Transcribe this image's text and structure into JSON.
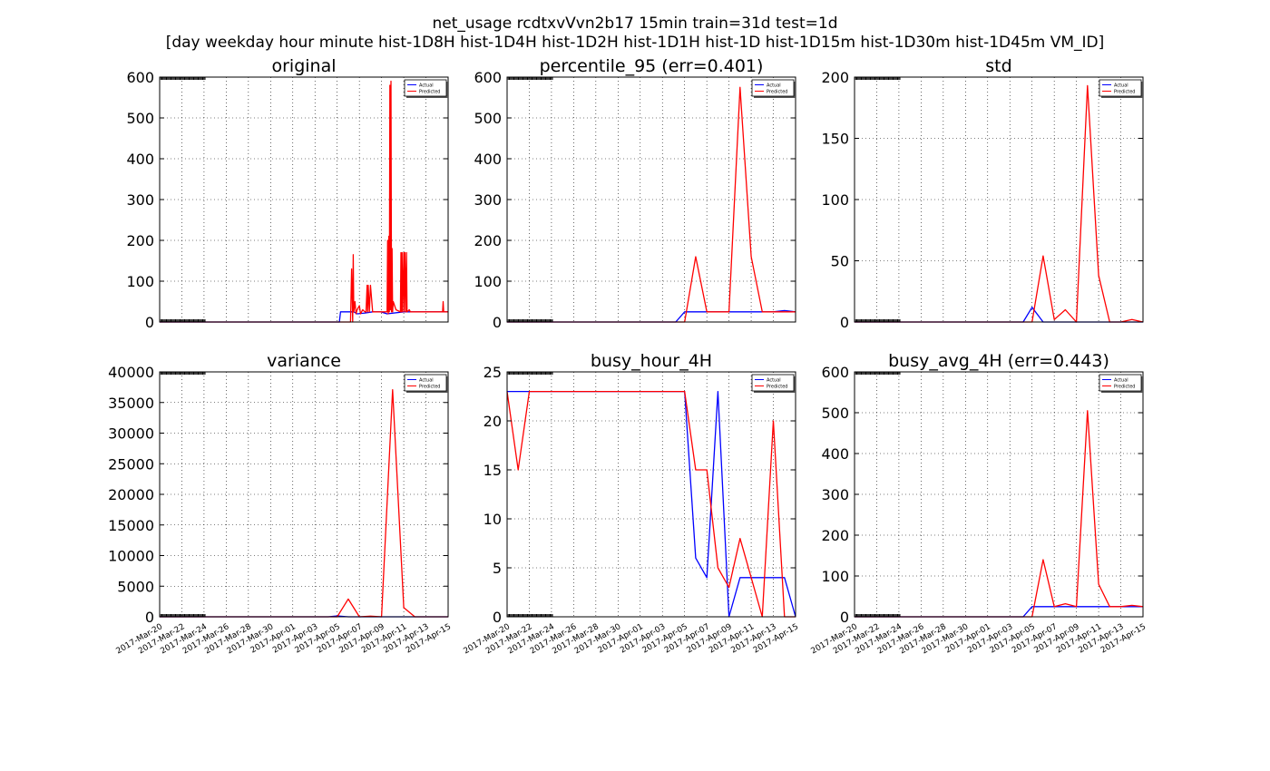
{
  "figure": {
    "title_line1": "net_usage rcdtxvVvn2b17 15min train=31d test=1d",
    "title_line2": "[day weekday hour minute hist-1D8H hist-1D4H hist-1D2H hist-1D1H hist-1D hist-1D15m hist-1D30m hist-1D45m VM_ID]"
  },
  "colors": {
    "actual": "#0000ff",
    "predicted": "#ff0000"
  },
  "x_tick_labels": [
    "2017-Mar-20",
    "2017-Mar-22",
    "2017-Mar-24",
    "2017-Mar-26",
    "2017-Mar-28",
    "2017-Mar-30",
    "2017-Apr-01",
    "2017-Apr-03",
    "2017-Apr-05",
    "2017-Apr-07",
    "2017-Apr-09",
    "2017-Apr-11",
    "2017-Apr-13",
    "2017-Apr-15"
  ],
  "chart_data": [
    {
      "type": "line",
      "title": "original",
      "xlim": [
        0,
        26
      ],
      "ylim": [
        0,
        600
      ],
      "yticks": [
        0,
        100,
        200,
        300,
        400,
        500,
        600
      ],
      "grid": true,
      "legend_placement": "top-right",
      "series": [
        {
          "name": "Actual",
          "color": "#0000ff",
          "x": [
            0,
            16.2,
            16.3,
            17.2,
            17.5,
            17.8,
            18.5,
            19.2,
            19.9,
            20.5,
            22,
            26
          ],
          "y": [
            0,
            0,
            25,
            25,
            25,
            20,
            22,
            25,
            25,
            20,
            25,
            25
          ]
        },
        {
          "name": "Predicted",
          "color": "#ff0000",
          "x": [
            0,
            17.2,
            17.3,
            17.4,
            17.45,
            17.5,
            17.6,
            17.7,
            17.8,
            18.0,
            18.1,
            18.2,
            18.3,
            18.5,
            18.6,
            18.7,
            18.75,
            18.8,
            18.9,
            19.0,
            19.2,
            20.5,
            20.55,
            20.6,
            20.65,
            20.7,
            20.75,
            20.8,
            20.85,
            20.9,
            20.95,
            21.0,
            21.05,
            21.3,
            21.7,
            21.75,
            21.8,
            21.85,
            21.9,
            22.0,
            22.05,
            22.1,
            22.2,
            22.25,
            22.3,
            22.5,
            22.6,
            23.5,
            25.5,
            25.55,
            25.6,
            26
          ],
          "y": [
            0,
            0,
            130,
            0,
            165,
            25,
            50,
            20,
            30,
            40,
            20,
            25,
            30,
            25,
            25,
            90,
            25,
            90,
            25,
            90,
            25,
            25,
            200,
            20,
            210,
            25,
            580,
            30,
            590,
            25,
            180,
            25,
            50,
            30,
            25,
            170,
            25,
            170,
            25,
            170,
            25,
            170,
            25,
            170,
            25,
            30,
            25,
            25,
            25,
            50,
            25,
            25
          ]
        }
      ]
    },
    {
      "type": "line",
      "title": "percentile_95 (err=0.401)",
      "xlim": [
        0,
        26
      ],
      "ylim": [
        0,
        600
      ],
      "yticks": [
        0,
        100,
        200,
        300,
        400,
        500,
        600
      ],
      "grid": true,
      "legend_placement": "top-right",
      "series": [
        {
          "name": "Actual",
          "color": "#0000ff",
          "x": [
            0,
            15.2,
            16,
            17,
            18,
            19,
            20,
            21,
            22,
            23,
            24,
            25,
            26
          ],
          "y": [
            0,
            0,
            25,
            25,
            25,
            25,
            25,
            25,
            25,
            25,
            25,
            28,
            25
          ]
        },
        {
          "name": "Predicted",
          "color": "#ff0000",
          "x": [
            0,
            16,
            17,
            18,
            19,
            20,
            21,
            22,
            23,
            24,
            25,
            26
          ],
          "y": [
            0,
            0,
            160,
            25,
            25,
            25,
            575,
            160,
            25,
            25,
            25,
            25
          ]
        }
      ]
    },
    {
      "type": "line",
      "title": "std",
      "xlim": [
        0,
        26
      ],
      "ylim": [
        0,
        200
      ],
      "yticks": [
        0,
        50,
        100,
        150,
        200
      ],
      "grid": true,
      "legend_placement": "top-right",
      "series": [
        {
          "name": "Actual",
          "color": "#0000ff",
          "x": [
            0,
            15.2,
            16,
            17,
            18,
            19,
            20,
            21,
            22,
            23,
            24,
            25,
            26
          ],
          "y": [
            0,
            0,
            12,
            0,
            0,
            0,
            0,
            0,
            0,
            0,
            0,
            0,
            0
          ]
        },
        {
          "name": "Predicted",
          "color": "#ff0000",
          "x": [
            0,
            16,
            17,
            18,
            19,
            20,
            21,
            22,
            23,
            24,
            25,
            26
          ],
          "y": [
            0,
            0,
            54,
            2,
            10,
            0,
            193,
            38,
            0,
            0,
            2,
            0
          ]
        }
      ]
    },
    {
      "type": "line",
      "title": "variance",
      "xlim": [
        0,
        26
      ],
      "ylim": [
        0,
        40000
      ],
      "yticks": [
        0,
        5000,
        10000,
        15000,
        20000,
        25000,
        30000,
        35000,
        40000
      ],
      "grid": true,
      "legend_placement": "top-right",
      "series": [
        {
          "name": "Actual",
          "color": "#0000ff",
          "x": [
            0,
            15.2,
            16,
            17,
            26
          ],
          "y": [
            0,
            0,
            150,
            0,
            0
          ]
        },
        {
          "name": "Predicted",
          "color": "#ff0000",
          "x": [
            0,
            16,
            17,
            18,
            19,
            20,
            21,
            22,
            23,
            24,
            25,
            26
          ],
          "y": [
            0,
            0,
            2900,
            0,
            100,
            0,
            37100,
            1500,
            0,
            0,
            0,
            0
          ]
        }
      ]
    },
    {
      "type": "line",
      "title": "busy_hour_4H",
      "xlim": [
        0,
        26
      ],
      "ylim": [
        0,
        25
      ],
      "yticks": [
        0,
        5,
        10,
        15,
        20,
        25
      ],
      "grid": true,
      "legend_placement": "top-right",
      "series": [
        {
          "name": "Actual",
          "color": "#0000ff",
          "x": [
            0,
            1,
            2,
            3,
            4,
            5,
            6,
            7,
            8,
            9,
            10,
            11,
            12,
            13,
            14,
            15,
            16,
            17,
            18,
            19,
            20,
            21,
            22,
            23,
            24,
            25,
            26
          ],
          "y": [
            23,
            23,
            23,
            23,
            23,
            23,
            23,
            23,
            23,
            23,
            23,
            23,
            23,
            23,
            23,
            23,
            23,
            6,
            4,
            23,
            0,
            4,
            4,
            4,
            4,
            4,
            0
          ]
        },
        {
          "name": "Predicted",
          "color": "#ff0000",
          "x": [
            0,
            1,
            2,
            3,
            4,
            5,
            6,
            7,
            8,
            9,
            10,
            11,
            12,
            13,
            14,
            15,
            16,
            17,
            18,
            19,
            20,
            21,
            22,
            23,
            24,
            25,
            26
          ],
          "y": [
            23,
            15,
            23,
            23,
            23,
            23,
            23,
            23,
            23,
            23,
            23,
            23,
            23,
            23,
            23,
            23,
            23,
            15,
            15,
            5,
            3,
            8,
            4,
            0,
            20,
            0,
            0
          ]
        }
      ]
    },
    {
      "type": "line",
      "title": "busy_avg_4H (err=0.443)",
      "xlim": [
        0,
        26
      ],
      "ylim": [
        0,
        600
      ],
      "yticks": [
        0,
        100,
        200,
        300,
        400,
        500,
        600
      ],
      "grid": true,
      "legend_placement": "top-right",
      "series": [
        {
          "name": "Actual",
          "color": "#0000ff",
          "x": [
            0,
            15.2,
            16,
            17,
            18,
            19,
            20,
            21,
            22,
            23,
            24,
            25,
            26
          ],
          "y": [
            0,
            0,
            25,
            25,
            25,
            25,
            25,
            25,
            25,
            25,
            25,
            25,
            25
          ]
        },
        {
          "name": "Predicted",
          "color": "#ff0000",
          "x": [
            0,
            16,
            17,
            18,
            19,
            20,
            21,
            22,
            23,
            24,
            25,
            26
          ],
          "y": [
            0,
            0,
            140,
            25,
            32,
            25,
            505,
            80,
            25,
            25,
            28,
            25
          ]
        }
      ]
    }
  ]
}
